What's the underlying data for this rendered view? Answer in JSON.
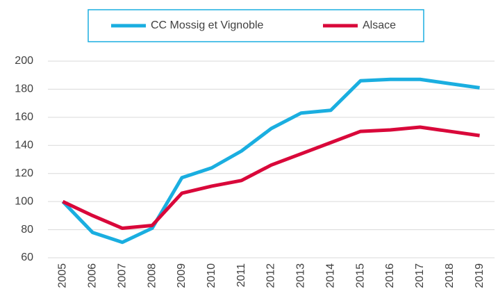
{
  "chart_data": {
    "type": "line",
    "categories": [
      "2005",
      "2006",
      "2007",
      "2008",
      "2009",
      "2010",
      "2011",
      "2012",
      "2013",
      "2014",
      "2015",
      "2016",
      "2017",
      "2018",
      "2019"
    ],
    "series": [
      {
        "name": "CC Mossig et Vignoble",
        "color": "#1aaee0",
        "values": [
          100,
          78,
          71,
          81,
          117,
          124,
          136,
          152,
          163,
          165,
          186,
          187,
          187,
          184,
          181
        ]
      },
      {
        "name": "Alsace",
        "color": "#d9083a",
        "values": [
          100,
          90,
          81,
          83,
          106,
          111,
          115,
          126,
          134,
          142,
          150,
          151,
          153,
          150,
          147
        ]
      }
    ],
    "ylim": [
      60,
      200
    ],
    "yticks": [
      60,
      80,
      100,
      120,
      140,
      160,
      180,
      200
    ],
    "grid": true,
    "legend": "top"
  }
}
